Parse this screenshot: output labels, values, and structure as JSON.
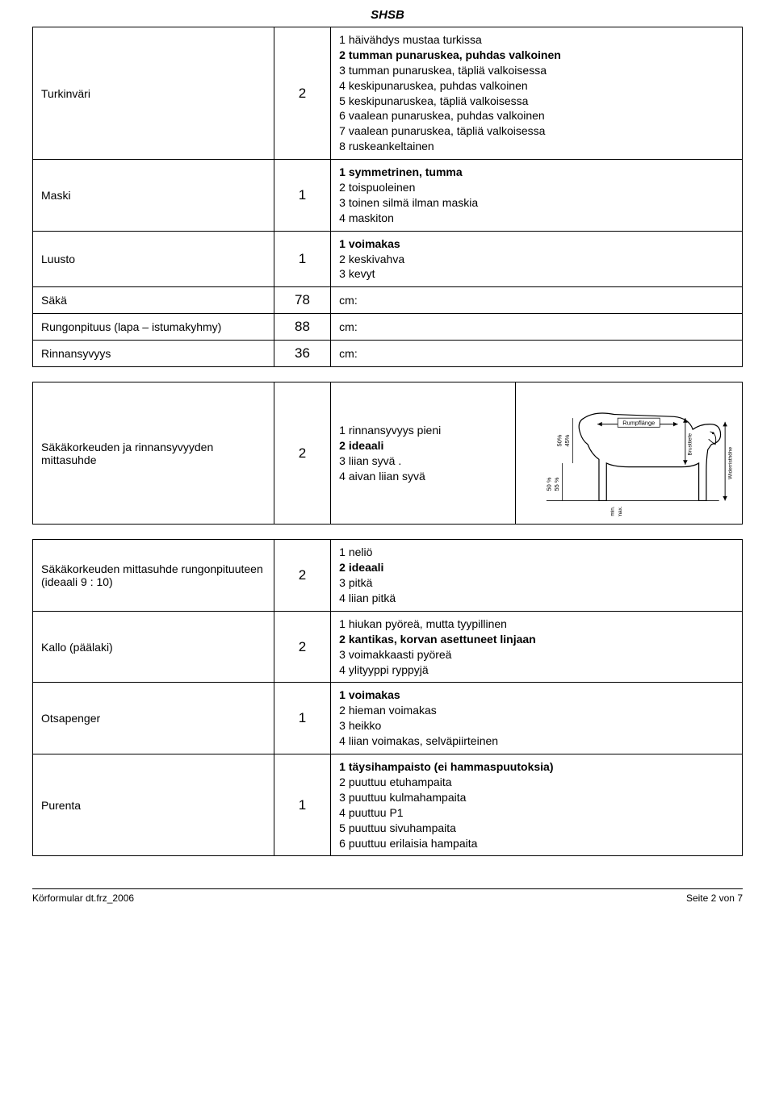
{
  "page_title": "SHSB",
  "table1": {
    "rows": [
      {
        "label": "Turkinväri",
        "value": "2",
        "options": [
          {
            "text": "1 häivähdys mustaa turkissa",
            "bold": false
          },
          {
            "text": "2 tumman punaruskea, puhdas valkoinen",
            "bold": true
          },
          {
            "text": "3 tumman punaruskea, täpliä valkoisessa",
            "bold": false
          },
          {
            "text": "4 keskipunaruskea, puhdas valkoinen",
            "bold": false
          },
          {
            "text": "5 keskipunaruskea, täpliä valkoisessa",
            "bold": false
          },
          {
            "text": "6 vaalean punaruskea, puhdas valkoinen",
            "bold": false
          },
          {
            "text": "7 vaalean punaruskea, täpliä valkoisessa",
            "bold": false
          },
          {
            "text": "8 ruskeankeltainen",
            "bold": false
          }
        ]
      },
      {
        "label": "Maski",
        "value": "1",
        "options": [
          {
            "text": "1 symmetrinen, tumma",
            "bold": true
          },
          {
            "text": "2 toispuoleinen",
            "bold": false
          },
          {
            "text": "3 toinen silmä ilman maskia",
            "bold": false
          },
          {
            "text": "4 maskiton",
            "bold": false
          }
        ]
      },
      {
        "label": "Luusto",
        "value": "1",
        "options": [
          {
            "text": "1 voimakas",
            "bold": true
          },
          {
            "text": "2 keskivahva",
            "bold": false
          },
          {
            "text": "3 kevyt",
            "bold": false
          }
        ]
      },
      {
        "label": "Säkä",
        "value": "78",
        "options": [
          {
            "text": "cm:",
            "bold": false
          }
        ]
      },
      {
        "label": "Rungonpituus (lapa – istumakyhmy)",
        "value": "88",
        "options": [
          {
            "text": "cm:",
            "bold": false
          }
        ]
      },
      {
        "label": "Rinnansyvyys",
        "value": "36",
        "options": [
          {
            "text": "cm:",
            "bold": false
          }
        ]
      }
    ]
  },
  "table2": {
    "label": "Säkäkorkeuden ja rinnansyvyyden mittasuhde",
    "value": "2",
    "options": [
      {
        "text": "1 rinnansyvyys pieni",
        "bold": false
      },
      {
        "text": "2 ideaali",
        "bold": true
      },
      {
        "text": "3 liian syvä .",
        "bold": false
      },
      {
        "text": "4 aivan liian syvä",
        "bold": false
      }
    ],
    "diagram": {
      "left_pct_top": "50%",
      "left_pct_bot": "45%",
      "left_pct2_top": "50 %",
      "left_pct2_bot": "55 %",
      "top_label": "Rumpflänge",
      "right_label1": "Brusttiefe",
      "right_label2": "Widerristhöhe",
      "bottom_label1": "min.",
      "bottom_label2": "max."
    }
  },
  "table3": {
    "rows": [
      {
        "label": "Säkäkorkeuden mittasuhde rungonpituuteen (ideaali 9 : 10)",
        "value": "2",
        "options": [
          {
            "text": "1 neliö",
            "bold": false
          },
          {
            "text": "2 ideaali",
            "bold": true
          },
          {
            "text": "3 pitkä",
            "bold": false
          },
          {
            "text": "4 liian pitkä",
            "bold": false
          }
        ]
      },
      {
        "label": "Kallo (päälaki)",
        "value": "2",
        "options": [
          {
            "text": "1 hiukan pyöreä, mutta tyypillinen",
            "bold": false
          },
          {
            "text": "2 kantikas, korvan asettuneet linjaan",
            "bold": true
          },
          {
            "text": "3 voimakkaasti pyöreä",
            "bold": false
          },
          {
            "text": "4 ylityyppi ryppyjä",
            "bold": false
          }
        ]
      },
      {
        "label": "Otsapenger",
        "value": "1",
        "options": [
          {
            "text": "1 voimakas",
            "bold": true
          },
          {
            "text": "2 hieman voimakas",
            "bold": false
          },
          {
            "text": "3 heikko",
            "bold": false
          },
          {
            "text": "4 liian voimakas, selväpiirteinen",
            "bold": false
          }
        ]
      },
      {
        "label": "Purenta",
        "value": "1",
        "options": [
          {
            "text": "1 täysihampaisto (ei hammaspuutoksia)",
            "bold": true
          },
          {
            "text": "2 puuttuu etuhampaita",
            "bold": false
          },
          {
            "text": "3 puuttuu kulmahampaita",
            "bold": false
          },
          {
            "text": "4 puuttuu P1",
            "bold": false
          },
          {
            "text": "5 puuttuu sivuhampaita",
            "bold": false
          },
          {
            "text": "6 puuttuu erilaisia hampaita",
            "bold": false
          }
        ]
      }
    ]
  },
  "footer": {
    "left": "Körformular dt.frz_2006",
    "right": "Seite 2 von 7"
  }
}
